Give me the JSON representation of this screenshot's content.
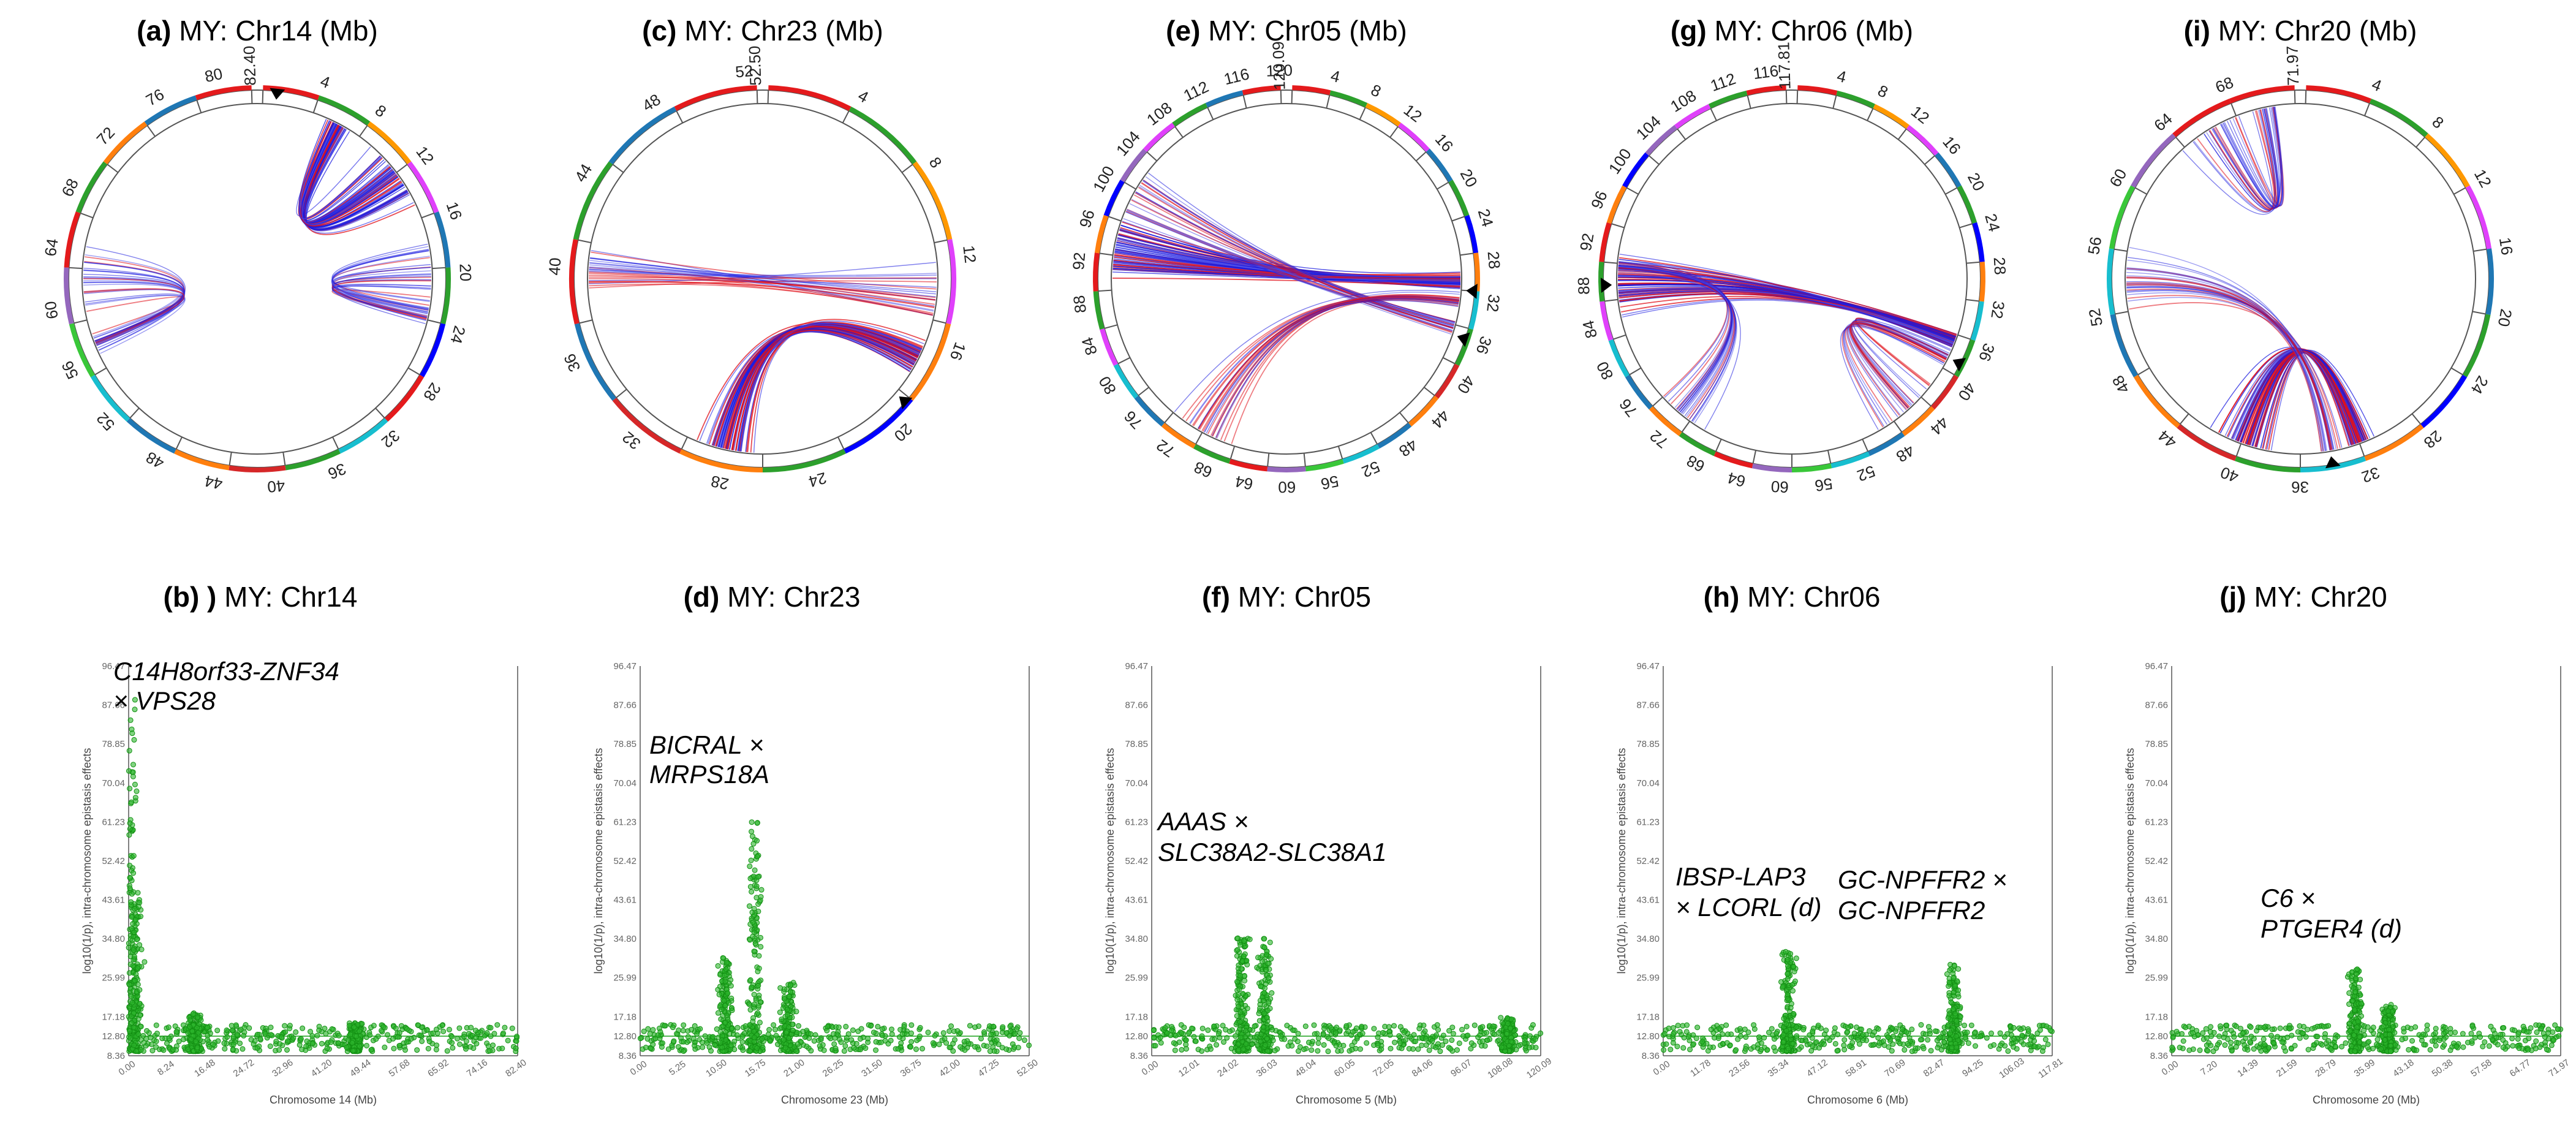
{
  "figure": {
    "circos": [
      {
        "label": "(a)",
        "title": "MY: Chr14 (Mb)",
        "end_label": "82.40",
        "ticks": [
          "4",
          "8",
          "12",
          "16",
          "20",
          "24",
          "28",
          "32",
          "36",
          "40",
          "44",
          "48",
          "52",
          "56",
          "60",
          "64",
          "68",
          "72",
          "76",
          "80"
        ],
        "ring_colors": [
          "#e41a1c",
          "#2ca02c",
          "#ff9900",
          "#e040fb",
          "#1f77b4",
          "#2ca02c",
          "#0000ff",
          "#e41a1c",
          "#17becf",
          "#2ca02c",
          "#d62728",
          "#ff7f0e",
          "#1f77b4",
          "#17becf",
          "#39c739",
          "#9467bd",
          "#e41a1c",
          "#2ca02c",
          "#ff7f0e",
          "#1f77b4"
        ]
      },
      {
        "label": "(c)",
        "title": "MY: Chr23 (Mb)",
        "end_label": "52.50",
        "ticks": [
          "4",
          "8",
          "12",
          "16",
          "20",
          "24",
          "28",
          "32",
          "36",
          "40",
          "44",
          "48",
          "52"
        ],
        "ring_colors": [
          "#e41a1c",
          "#2ca02c",
          "#ff9900",
          "#e040fb",
          "#ff7f0e",
          "#0000ff",
          "#2ca02c",
          "#ff7f0e",
          "#d62728",
          "#1f77b4",
          "#e41a1c",
          "#2ca02c",
          "#1f77b4"
        ]
      },
      {
        "label": "(e)",
        "title": "MY: Chr05 (Mb)",
        "end_label": "120.09",
        "ticks": [
          "4",
          "8",
          "12",
          "16",
          "20",
          "24",
          "28",
          "32",
          "36",
          "40",
          "44",
          "48",
          "52",
          "56",
          "60",
          "64",
          "68",
          "72",
          "76",
          "80",
          "84",
          "88",
          "92",
          "96",
          "100",
          "104",
          "108",
          "112",
          "116",
          "120"
        ],
        "ring_colors": [
          "#e41a1c",
          "#2ca02c",
          "#ff9900",
          "#e040fb",
          "#1f77b4",
          "#2ca02c",
          "#0000ff",
          "#ff7f0e",
          "#17becf",
          "#2ca02c",
          "#d62728",
          "#ff7f0e",
          "#1f77b4",
          "#17becf",
          "#39c739",
          "#9467bd",
          "#e41a1c",
          "#2ca02c",
          "#ff7f0e",
          "#1f77b4",
          "#17becf",
          "#e040fb",
          "#2ca02c",
          "#e41a1c",
          "#ff7f0e",
          "#0000ff",
          "#9467bd",
          "#e040fb",
          "#2ca02c",
          "#1f77b4"
        ]
      },
      {
        "label": "(g)",
        "title": "MY: Chr06 (Mb)",
        "end_label": "117.81",
        "ticks": [
          "4",
          "8",
          "12",
          "16",
          "20",
          "24",
          "28",
          "32",
          "36",
          "40",
          "44",
          "48",
          "52",
          "56",
          "60",
          "64",
          "68",
          "72",
          "76",
          "80",
          "84",
          "88",
          "92",
          "96",
          "100",
          "104",
          "108",
          "112",
          "116"
        ],
        "ring_colors": [
          "#e41a1c",
          "#2ca02c",
          "#ff9900",
          "#e040fb",
          "#1f77b4",
          "#2ca02c",
          "#0000ff",
          "#ff7f0e",
          "#17becf",
          "#2ca02c",
          "#d62728",
          "#ff7f0e",
          "#1f77b4",
          "#17becf",
          "#39c739",
          "#9467bd",
          "#e41a1c",
          "#2ca02c",
          "#ff7f0e",
          "#1f77b4",
          "#17becf",
          "#e040fb",
          "#2ca02c",
          "#e41a1c",
          "#ff7f0e",
          "#0000ff",
          "#9467bd",
          "#e040fb",
          "#2ca02c"
        ]
      },
      {
        "label": "(i)",
        "title": "MY: Chr20 (Mb)",
        "end_label": "71.97",
        "ticks": [
          "4",
          "8",
          "12",
          "16",
          "20",
          "24",
          "28",
          "32",
          "36",
          "40",
          "44",
          "48",
          "52",
          "56",
          "60",
          "64",
          "68"
        ],
        "ring_colors": [
          "#e41a1c",
          "#2ca02c",
          "#ff9900",
          "#e040fb",
          "#1f77b4",
          "#2ca02c",
          "#0000ff",
          "#ff7f0e",
          "#17becf",
          "#2ca02c",
          "#d62728",
          "#ff7f0e",
          "#1f77b4",
          "#17becf",
          "#39c739",
          "#9467bd",
          "#e41a1c"
        ]
      }
    ],
    "manhattan": [
      {
        "label": "(b) )",
        "title": "MY: Chr14",
        "xlabel": "Chromosome 14 (Mb)",
        "xticks": [
          "0.00",
          "8.24",
          "16.48",
          "24.72",
          "32.96",
          "41.20",
          "49.44",
          "57.68",
          "65.92",
          "74.16",
          "82.40"
        ],
        "gene_lines": [
          "C14H8orf33-ZNF34",
          "× VPS28"
        ]
      },
      {
        "label": "(d)",
        "title": "MY: Chr23",
        "xlabel": "Chromosome 23 (Mb)",
        "xticks": [
          "0.00",
          "5.25",
          "10.50",
          "15.75",
          "21.00",
          "26.25",
          "31.50",
          "36.75",
          "42.00",
          "47.25",
          "52.50"
        ],
        "gene_lines": [
          "BICRAL ×",
          "MRPS18A"
        ]
      },
      {
        "label": "(f)",
        "title": "MY: Chr05",
        "xlabel": "Chromosome 5 (Mb)",
        "xticks": [
          "0.00",
          "12.01",
          "24.02",
          "36.03",
          "48.04",
          "60.05",
          "72.05",
          "84.06",
          "96.07",
          "108.08",
          "120.09"
        ],
        "gene_lines": [
          "AAAS ×",
          "SLC38A2-SLC38A1"
        ]
      },
      {
        "label": "(h)",
        "title": "MY: Chr06",
        "xlabel": "Chromosome 6 (Mb)",
        "xticks": [
          "0.00",
          "11.78",
          "23.56",
          "35.34",
          "47.12",
          "58.91",
          "70.69",
          "82.47",
          "94.25",
          "106.03",
          "117.81"
        ],
        "gene_lines": [
          "IBSP-LAP3",
          "× LCORL (d)"
        ],
        "gene_lines_2": [
          "GC-NPFFR2 ×",
          "GC-NPFFR2"
        ]
      },
      {
        "label": "(j)",
        "title": "MY: Chr20",
        "xlabel": "Chromosome 20 (Mb)",
        "xticks": [
          "0.00",
          "7.20",
          "14.39",
          "21.59",
          "28.79",
          "35.99",
          "43.18",
          "50.38",
          "57.58",
          "64.77",
          "71.97"
        ],
        "gene_lines": [
          "C6 ×",
          "PTGER4 (d)"
        ]
      }
    ]
  },
  "chart_data": [
    {
      "type": "chord",
      "panel": "(a)",
      "title": "MY: Chr14 (Mb)",
      "chromosome_length_mb": 82.4,
      "interaction_hubs_mb": [
        [
          6,
          12
        ],
        [
          23,
          20
        ],
        [
          57,
          62
        ]
      ],
      "markers_mb": [
        1
      ]
    },
    {
      "type": "chord",
      "panel": "(c)",
      "title": "MY: Chr23 (Mb)",
      "chromosome_length_mb": 52.5,
      "interaction_hubs_mb": [
        [
          17,
          28
        ],
        [
          40,
          14
        ]
      ],
      "markers_mb": [
        19
      ]
    },
    {
      "type": "chord",
      "panel": "(e)",
      "title": "MY: Chr05 (Mb)",
      "chromosome_length_mb": 120.09,
      "interaction_hubs_mb": [
        [
          30,
          94
        ],
        [
          35,
          100
        ],
        [
          32,
          70
        ]
      ],
      "markers_mb": [
        31,
        36
      ]
    },
    {
      "type": "chord",
      "panel": "(g)",
      "title": "MY: Chr06 (Mb)",
      "chromosome_length_mb": 117.81,
      "interaction_hubs_mb": [
        [
          36,
          88
        ],
        [
          90,
          72
        ],
        [
          38,
          45
        ]
      ],
      "markers_mb": [
        38,
        88
      ]
    },
    {
      "type": "chord",
      "panel": "(i)",
      "title": "MY: Chr20 (Mb)",
      "chromosome_length_mb": 71.97,
      "interaction_hubs_mb": [
        [
          32,
          40
        ],
        [
          70,
          66
        ],
        [
          34,
          54
        ]
      ],
      "markers_mb": [
        34
      ]
    },
    {
      "type": "scatter",
      "panel": "(b) )",
      "title": "MY: Chr14",
      "xlabel": "Chromosome 14 (Mb)",
      "ylabel": "log10(1/p), intra-chromosome epistasis effects",
      "xlim": [
        0,
        82.4
      ],
      "ylim": [
        8.36,
        96.47
      ],
      "yticks": [
        8.36,
        12.8,
        17.18,
        25.99,
        34.8,
        43.61,
        52.42,
        61.23,
        70.04,
        78.85,
        87.66,
        96.47
      ],
      "threshold": 12.8,
      "peaks": [
        {
          "x": 0.5,
          "y": 89
        },
        {
          "x": 1.5,
          "y": 45
        },
        {
          "x": 14,
          "y": 18
        },
        {
          "x": 48,
          "y": 16
        }
      ],
      "gene_annotation": "C14H8orf33-ZNF34 × VPS28"
    },
    {
      "type": "scatter",
      "panel": "(d)",
      "title": "MY: Chr23",
      "xlabel": "Chromosome 23 (Mb)",
      "ylabel": "log10(1/p), intra-chromosome epistasis effects",
      "xlim": [
        0,
        52.5
      ],
      "ylim": [
        8.36,
        96.47
      ],
      "yticks": [
        8.36,
        12.8,
        17.18,
        25.99,
        34.8,
        43.61,
        52.42,
        61.23,
        70.04,
        78.85,
        87.66,
        96.47
      ],
      "threshold": 12.8,
      "peaks": [
        {
          "x": 11.5,
          "y": 31
        },
        {
          "x": 15.5,
          "y": 62
        },
        {
          "x": 20,
          "y": 25
        }
      ],
      "gene_annotation": "BICRAL × MRPS18A"
    },
    {
      "type": "scatter",
      "panel": "(f)",
      "title": "MY: Chr05",
      "xlabel": "Chromosome 5 (Mb)",
      "ylabel": "log10(1/p), intra-chromosome epistasis effects",
      "xlim": [
        0,
        120.09
      ],
      "ylim": [
        8.36,
        96.47
      ],
      "yticks": [
        8.36,
        12.8,
        17.18,
        25.99,
        34.8,
        43.61,
        52.42,
        61.23,
        70.04,
        78.85,
        87.66,
        96.47
      ],
      "threshold": 12.8,
      "peaks": [
        {
          "x": 28,
          "y": 35
        },
        {
          "x": 35,
          "y": 35
        },
        {
          "x": 110,
          "y": 17
        }
      ],
      "gene_annotation": "AAAS × SLC38A2-SLC38A1"
    },
    {
      "type": "scatter",
      "panel": "(h)",
      "title": "MY: Chr06",
      "xlabel": "Chromosome 6 (Mb)",
      "ylabel": "log10(1/p), intra-chromosome epistasis effects",
      "xlim": [
        0,
        117.81
      ],
      "ylim": [
        8.36,
        96.47
      ],
      "yticks": [
        8.36,
        12.8,
        17.18,
        25.99,
        34.8,
        43.61,
        52.42,
        61.23,
        70.04,
        78.85,
        87.66,
        96.47
      ],
      "threshold": 12.8,
      "peaks": [
        {
          "x": 38,
          "y": 32
        },
        {
          "x": 88,
          "y": 29
        }
      ],
      "gene_annotation": "IBSP-LAP3 × LCORL (d); GC-NPFFR2 × GC-NPFFR2"
    },
    {
      "type": "scatter",
      "panel": "(j)",
      "title": "MY: Chr20",
      "xlabel": "Chromosome 20 (Mb)",
      "ylabel": "log10(1/p), intra-chromosome epistasis effects",
      "xlim": [
        0,
        71.97
      ],
      "ylim": [
        8.36,
        96.47
      ],
      "yticks": [
        8.36,
        12.8,
        17.18,
        25.99,
        34.8,
        43.61,
        52.42,
        61.23,
        70.04,
        78.85,
        87.66,
        96.47
      ],
      "threshold": 12.8,
      "peaks": [
        {
          "x": 34,
          "y": 28
        },
        {
          "x": 40,
          "y": 20
        }
      ],
      "gene_annotation": "C6 × PTGER4 (d)"
    }
  ]
}
